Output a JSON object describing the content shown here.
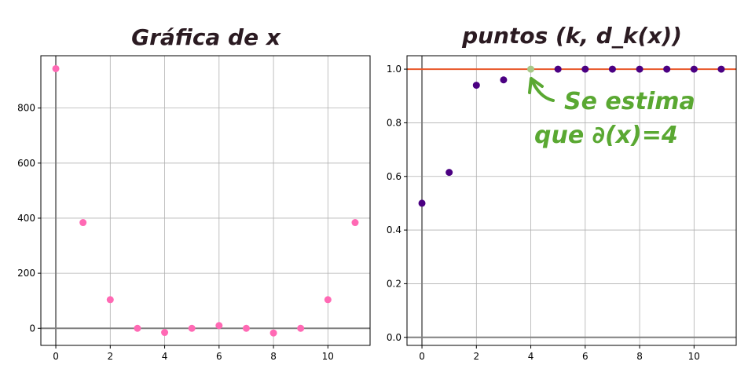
{
  "chart_data": [
    {
      "type": "scatter",
      "title": "Gráfica de x",
      "x": [
        0,
        1,
        2,
        3,
        4,
        5,
        6,
        7,
        8,
        9,
        10,
        11
      ],
      "y": [
        943,
        384,
        104,
        0,
        -15,
        0,
        10,
        0,
        -17,
        0,
        104,
        384
      ],
      "xlim": [
        -0.55,
        11.55
      ],
      "ylim": [
        -62,
        990
      ],
      "xticks": [
        0,
        2,
        4,
        6,
        8,
        10
      ],
      "yticks": [
        0,
        200,
        400,
        600,
        800
      ],
      "grid": true,
      "marker_color": "#ff69b4"
    },
    {
      "type": "scatter",
      "title": "puntos (k, d_k(x))",
      "x": [
        0,
        1,
        2,
        3,
        4,
        5,
        6,
        7,
        8,
        9,
        10,
        11
      ],
      "y": [
        0.5,
        0.615,
        0.94,
        0.96,
        1.0,
        1.0,
        1.0,
        1.0,
        1.0,
        1.0,
        1.0,
        1.0
      ],
      "highlight_index": 4,
      "xlim": [
        -0.55,
        11.55
      ],
      "ylim": [
        -0.03,
        1.05
      ],
      "xticks": [
        0,
        2,
        4,
        6,
        8,
        10
      ],
      "yticks": [
        0.0,
        0.2,
        0.4,
        0.6,
        0.8,
        1.0
      ],
      "ytick_labels": [
        "0.0",
        "0.2",
        "0.4",
        "0.6",
        "0.8",
        "1.0"
      ],
      "hline": 1.0,
      "hline_color": "#e8572a",
      "grid": true,
      "marker_color": "#4b0082",
      "highlight_color": "#a8c888",
      "annotation": {
        "line1": "Se estima",
        "line2": "que ∂(x)=4",
        "color": "#5aa832"
      }
    }
  ]
}
